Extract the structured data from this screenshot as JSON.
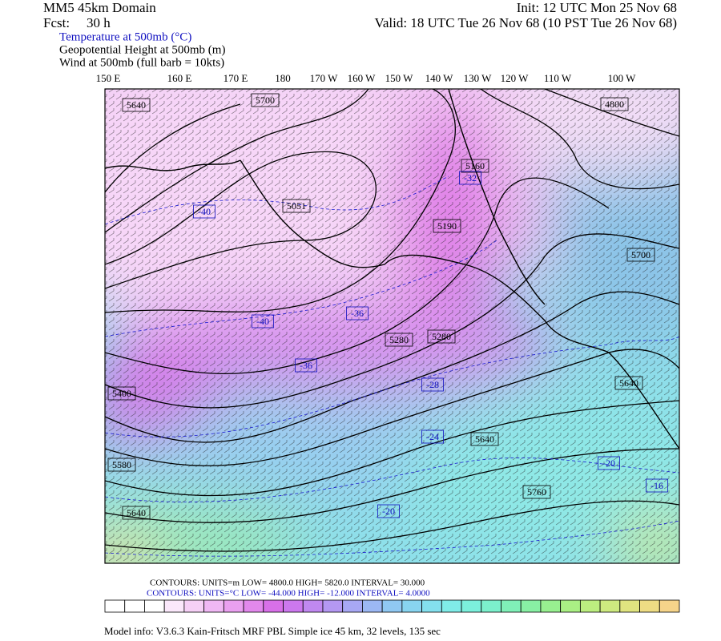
{
  "header": {
    "domain": "MM5 45km Domain",
    "init": "Init: 12 UTC Mon 25 Nov 68",
    "fcst_label": "Fcst:",
    "fcst_value": "30 h",
    "valid": "Valid: 18 UTC Tue 26 Nov 68 (10 PST Tue 26 Nov 68)",
    "fields": [
      "Temperature at 500mb (°C)",
      "Geopotential Height at 500mb (m)",
      "Wind at 500mb (full barb = 10kts)"
    ]
  },
  "longitudes": [
    "150 E",
    "160 E",
    "170 E",
    "180",
    "170 W",
    "160 W",
    "150 W",
    "140 W",
    "130 W",
    "120 W",
    "110 W",
    "100 W"
  ],
  "height_labels": [
    "5640",
    "5700",
    "4800",
    "5160",
    "5051",
    "5190",
    "5700",
    "5280",
    "5280",
    "5640",
    "5400",
    "5580",
    "5640",
    "5760",
    "5640"
  ],
  "temperature_labels": [
    "-32",
    "-40",
    "-40",
    "-36",
    "-36",
    "-28",
    "-24",
    "-20",
    "-20",
    "-16"
  ],
  "footer": {
    "height_contours": "CONTOURS:  UNITS=m  LOW=  4800.0      HIGH=  5820.0       INTERVAL=   30.000",
    "temperature_contours": "CONTOURS:  UNITS=°C  LOW=  -44.000       HIGH=  -12.000      INTERVAL=   4.0000",
    "model_info": "Model info: V3.6.3 Kain-Fritsch MRF PBL    Simple ice    45 km,  32 levels,  135 sec"
  }
}
